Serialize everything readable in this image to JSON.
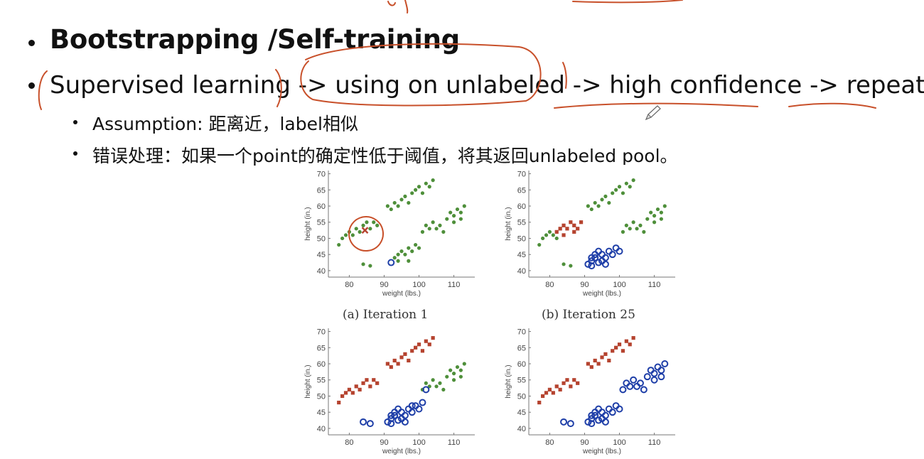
{
  "slide": {
    "bullet1": "Bootstrapping /Self-training",
    "bullet2": {
      "part1": "Supervised learning",
      "sep1": " -> ",
      "part2": "using on unlabeled",
      "sep2": " -> ",
      "part3": "high confidence",
      "sep3": " -> ",
      "part4": "repeat"
    },
    "sub1": "Assumption: 距离近，label相似",
    "sub2": "错误处理：如果一个point的确定性低于阈值，将其返回unlabeled pool。"
  },
  "annotation_color": "#c8502a",
  "figure": {
    "xlabel": "weight (lbs.)",
    "ylabel": "height (in.)",
    "xticks": [
      80,
      90,
      100,
      110
    ],
    "yticks": [
      40,
      45,
      50,
      55,
      60,
      65,
      70
    ],
    "xlim": [
      74,
      116
    ],
    "ylim": [
      38,
      71
    ],
    "colors": {
      "red": "#b5432f",
      "green": "#4e8f3a",
      "blue": "#1f3fa8"
    },
    "captions": [
      "(a) Iteration 1",
      "(b) Iteration 25",
      "",
      ""
    ]
  },
  "chart_data": [
    {
      "type": "scatter",
      "title": "(a) Iteration 1",
      "xlabel": "weight (lbs.)",
      "ylabel": "height (in.)",
      "xlim": [
        74,
        116
      ],
      "ylim": [
        38,
        71
      ],
      "series": [
        {
          "color": "red",
          "marker": "x",
          "points": [
            [
              84.5,
              52.5
            ]
          ]
        },
        {
          "color": "blue",
          "marker": "o",
          "points": [
            [
              92,
              42.5
            ]
          ]
        },
        {
          "color": "green",
          "marker": "dot",
          "points": [
            [
              77,
              48
            ],
            [
              78,
              50
            ],
            [
              79,
              51
            ],
            [
              80,
              52
            ],
            [
              81,
              51
            ],
            [
              82,
              53
            ],
            [
              83,
              52
            ],
            [
              84,
              54
            ],
            [
              85,
              55
            ],
            [
              86,
              53
            ],
            [
              87,
              55
            ],
            [
              88,
              54
            ],
            [
              84,
              42
            ],
            [
              86,
              41.5
            ],
            [
              91,
              60
            ],
            [
              92,
              59
            ],
            [
              93,
              61
            ],
            [
              94,
              60
            ],
            [
              95,
              62
            ],
            [
              96,
              63
            ],
            [
              97,
              61
            ],
            [
              98,
              64
            ],
            [
              99,
              65
            ],
            [
              100,
              66
            ],
            [
              101,
              64
            ],
            [
              102,
              67
            ],
            [
              103,
              66
            ],
            [
              104,
              68
            ],
            [
              93,
              44
            ],
            [
              94,
              45
            ],
            [
              95,
              46
            ],
            [
              96,
              45
            ],
            [
              97,
              47
            ],
            [
              98,
              46
            ],
            [
              99,
              48
            ],
            [
              100,
              47
            ],
            [
              97,
              43
            ],
            [
              94,
              43
            ],
            [
              101,
              52
            ],
            [
              102,
              54
            ],
            [
              103,
              53
            ],
            [
              104,
              55
            ],
            [
              105,
              53
            ],
            [
              106,
              54
            ],
            [
              107,
              52
            ],
            [
              108,
              56
            ],
            [
              109,
              58
            ],
            [
              110,
              57
            ],
            [
              111,
              59
            ],
            [
              112,
              58
            ],
            [
              113,
              60
            ],
            [
              112,
              56
            ],
            [
              110,
              55
            ]
          ]
        }
      ]
    },
    {
      "type": "scatter",
      "title": "(b) Iteration 25",
      "xlabel": "weight (lbs.)",
      "ylabel": "height (in.)",
      "xlim": [
        74,
        116
      ],
      "ylim": [
        38,
        71
      ],
      "series": [
        {
          "color": "red",
          "marker": "square",
          "points": [
            [
              82,
              52
            ],
            [
              83,
              53
            ],
            [
              84,
              54
            ],
            [
              85,
              53
            ],
            [
              86,
              55
            ],
            [
              87,
              54
            ],
            [
              88,
              53
            ],
            [
              89,
              55
            ],
            [
              87,
              52
            ],
            [
              84,
              51
            ]
          ]
        },
        {
          "color": "green",
          "marker": "dot",
          "points": [
            [
              77,
              48
            ],
            [
              78,
              50
            ],
            [
              79,
              51
            ],
            [
              80,
              52
            ],
            [
              81,
              51
            ],
            [
              82,
              50
            ],
            [
              84,
              42
            ],
            [
              86,
              41.5
            ],
            [
              91,
              60
            ],
            [
              92,
              59
            ],
            [
              93,
              61
            ],
            [
              94,
              60
            ],
            [
              95,
              62
            ],
            [
              96,
              63
            ],
            [
              97,
              61
            ],
            [
              98,
              64
            ],
            [
              99,
              65
            ],
            [
              100,
              66
            ],
            [
              101,
              64
            ],
            [
              102,
              67
            ],
            [
              103,
              66
            ],
            [
              104,
              68
            ],
            [
              101,
              52
            ],
            [
              102,
              54
            ],
            [
              103,
              53
            ],
            [
              104,
              55
            ],
            [
              105,
              53
            ],
            [
              106,
              54
            ],
            [
              107,
              52
            ],
            [
              108,
              56
            ],
            [
              109,
              58
            ],
            [
              110,
              57
            ],
            [
              111,
              59
            ],
            [
              112,
              58
            ],
            [
              113,
              60
            ],
            [
              112,
              56
            ],
            [
              110,
              55
            ]
          ]
        },
        {
          "color": "blue",
          "marker": "o",
          "points": [
            [
              91,
              42
            ],
            [
              92,
              43
            ],
            [
              93,
              44
            ],
            [
              94,
              42.5
            ],
            [
              95,
              45
            ],
            [
              96,
              44
            ],
            [
              92,
              41.5
            ],
            [
              93,
              45
            ],
            [
              94,
              46
            ],
            [
              95,
              43
            ],
            [
              97,
              46
            ],
            [
              98,
              45
            ],
            [
              99,
              47
            ],
            [
              100,
              46
            ],
            [
              96,
              42
            ],
            [
              92,
              44
            ]
          ]
        }
      ]
    },
    {
      "type": "scatter",
      "title": "",
      "xlabel": "weight (lbs.)",
      "ylabel": "height (in.)",
      "xlim": [
        74,
        116
      ],
      "ylim": [
        38,
        71
      ],
      "series": [
        {
          "color": "red",
          "marker": "square",
          "points": [
            [
              77,
              48
            ],
            [
              78,
              50
            ],
            [
              79,
              51
            ],
            [
              80,
              52
            ],
            [
              81,
              51
            ],
            [
              82,
              53
            ],
            [
              83,
              52
            ],
            [
              84,
              54
            ],
            [
              85,
              55
            ],
            [
              86,
              53
            ],
            [
              87,
              55
            ],
            [
              88,
              54
            ],
            [
              91,
              60
            ],
            [
              92,
              59
            ],
            [
              93,
              61
            ],
            [
              94,
              60
            ],
            [
              95,
              62
            ],
            [
              96,
              63
            ],
            [
              97,
              61
            ],
            [
              98,
              64
            ],
            [
              99,
              65
            ],
            [
              100,
              66
            ],
            [
              101,
              64
            ],
            [
              102,
              67
            ],
            [
              103,
              66
            ],
            [
              104,
              68
            ]
          ]
        },
        {
          "color": "green",
          "marker": "dot",
          "points": [
            [
              101,
              52
            ],
            [
              102,
              54
            ],
            [
              103,
              53
            ],
            [
              104,
              55
            ],
            [
              105,
              53
            ],
            [
              106,
              54
            ],
            [
              107,
              52
            ],
            [
              108,
              56
            ],
            [
              109,
              58
            ],
            [
              110,
              57
            ],
            [
              111,
              59
            ],
            [
              112,
              58
            ],
            [
              113,
              60
            ],
            [
              112,
              56
            ],
            [
              110,
              55
            ]
          ]
        },
        {
          "color": "blue",
          "marker": "o",
          "points": [
            [
              84,
              42
            ],
            [
              86,
              41.5
            ],
            [
              91,
              42
            ],
            [
              92,
              43
            ],
            [
              93,
              44
            ],
            [
              94,
              42.5
            ],
            [
              95,
              45
            ],
            [
              96,
              44
            ],
            [
              92,
              41.5
            ],
            [
              93,
              45
            ],
            [
              94,
              46
            ],
            [
              95,
              43
            ],
            [
              97,
              46
            ],
            [
              98,
              45
            ],
            [
              99,
              47
            ],
            [
              100,
              46
            ],
            [
              96,
              42
            ],
            [
              92,
              44
            ],
            [
              101,
              48
            ],
            [
              98,
              47
            ],
            [
              102,
              52
            ]
          ]
        }
      ]
    },
    {
      "type": "scatter",
      "title": "",
      "xlabel": "weight (lbs.)",
      "ylabel": "height (in.)",
      "xlim": [
        74,
        116
      ],
      "ylim": [
        38,
        71
      ],
      "series": [
        {
          "color": "red",
          "marker": "square",
          "points": [
            [
              77,
              48
            ],
            [
              78,
              50
            ],
            [
              79,
              51
            ],
            [
              80,
              52
            ],
            [
              81,
              51
            ],
            [
              82,
              53
            ],
            [
              83,
              52
            ],
            [
              84,
              54
            ],
            [
              85,
              55
            ],
            [
              86,
              53
            ],
            [
              87,
              55
            ],
            [
              88,
              54
            ],
            [
              91,
              60
            ],
            [
              92,
              59
            ],
            [
              93,
              61
            ],
            [
              94,
              60
            ],
            [
              95,
              62
            ],
            [
              96,
              63
            ],
            [
              97,
              61
            ],
            [
              98,
              64
            ],
            [
              99,
              65
            ],
            [
              100,
              66
            ],
            [
              101,
              64
            ],
            [
              102,
              67
            ],
            [
              103,
              66
            ],
            [
              104,
              68
            ]
          ]
        },
        {
          "color": "blue",
          "marker": "o",
          "points": [
            [
              84,
              42
            ],
            [
              86,
              41.5
            ],
            [
              91,
              42
            ],
            [
              92,
              43
            ],
            [
              93,
              44
            ],
            [
              94,
              42.5
            ],
            [
              95,
              45
            ],
            [
              96,
              44
            ],
            [
              92,
              41.5
            ],
            [
              93,
              45
            ],
            [
              94,
              46
            ],
            [
              95,
              43
            ],
            [
              97,
              46
            ],
            [
              98,
              45
            ],
            [
              99,
              47
            ],
            [
              100,
              46
            ],
            [
              96,
              42
            ],
            [
              92,
              44
            ],
            [
              101,
              52
            ],
            [
              102,
              54
            ],
            [
              103,
              53
            ],
            [
              104,
              55
            ],
            [
              105,
              53
            ],
            [
              106,
              54
            ],
            [
              107,
              52
            ],
            [
              108,
              56
            ],
            [
              109,
              58
            ],
            [
              110,
              57
            ],
            [
              111,
              59
            ],
            [
              112,
              58
            ],
            [
              113,
              60
            ],
            [
              112,
              56
            ],
            [
              110,
              55
            ]
          ]
        }
      ]
    }
  ]
}
